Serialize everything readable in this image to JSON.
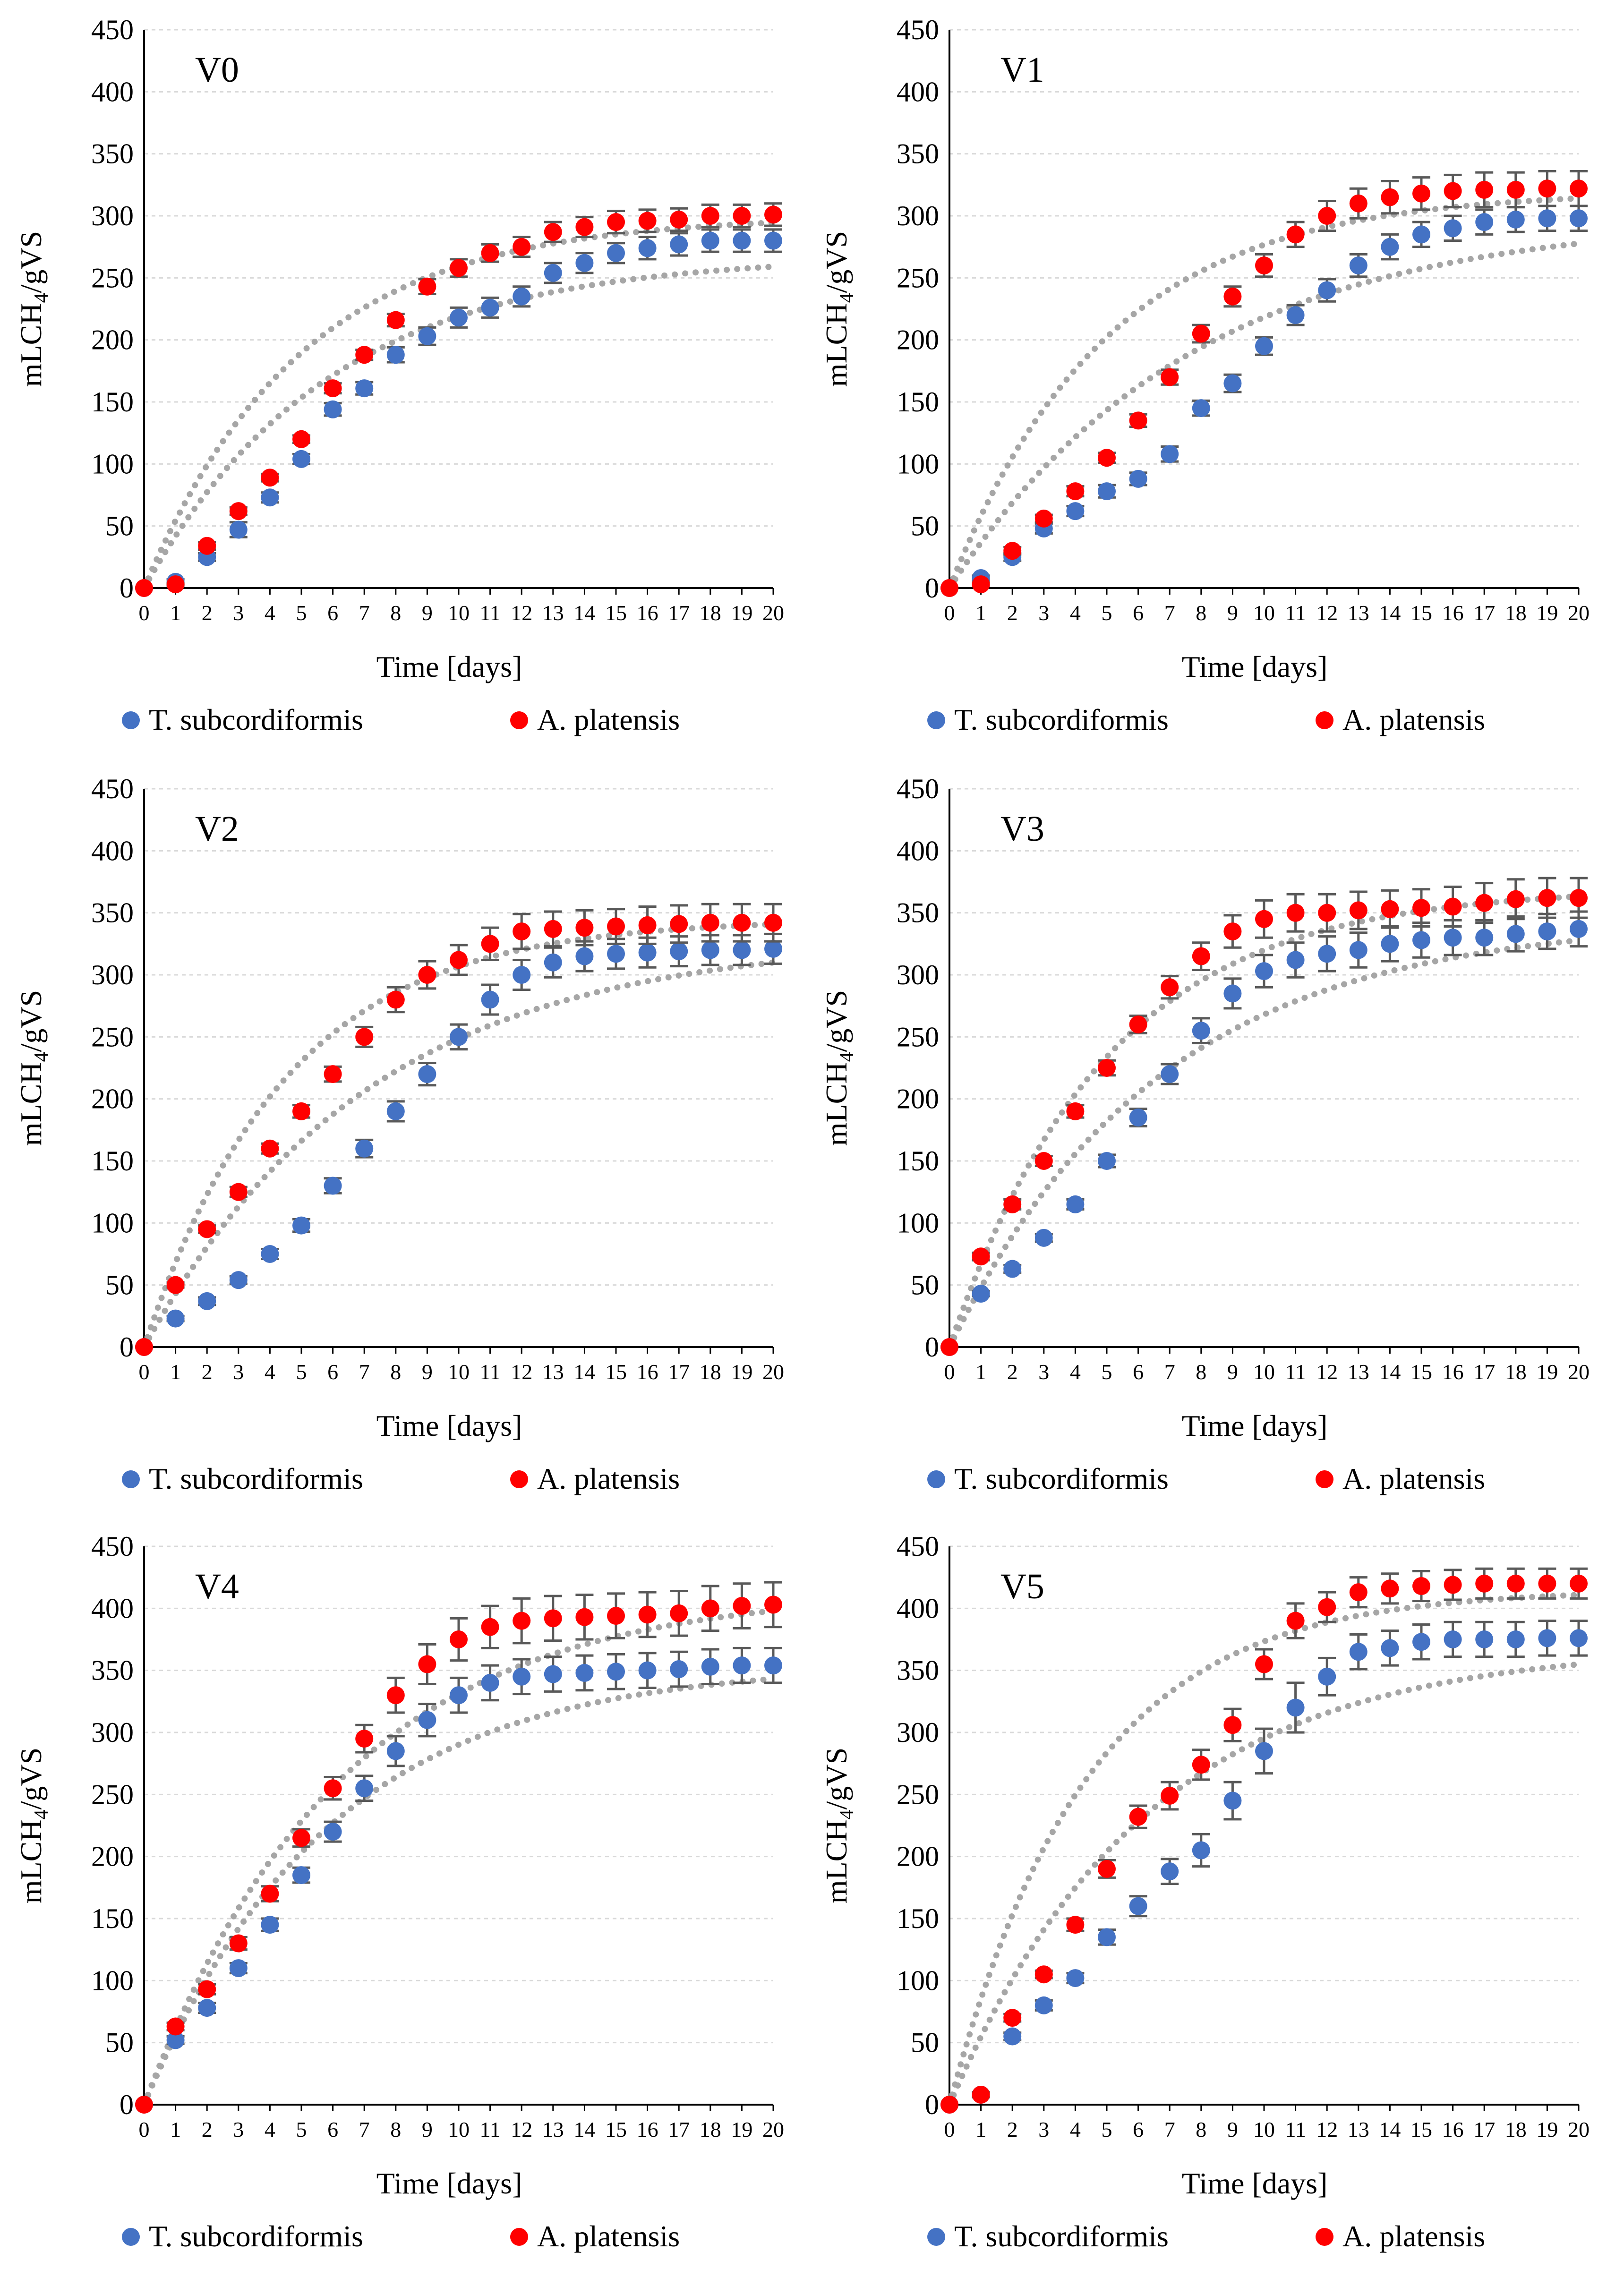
{
  "figure": {
    "y_axis_label": "mLCH",
    "y_axis_label_sub": "4",
    "y_axis_label_tail": "/gVS",
    "x_axis_label": "Time [days]",
    "colors": {
      "t_subcordiformis": "#4472c4",
      "a_platensis": "#ff0000",
      "trend": "#a6a6a6",
      "error_bar": "#595959",
      "grid": "#d9d9d9"
    }
  },
  "chart_data": [
    {
      "type": "scatter",
      "title": "V0",
      "xlabel": "Time [days]",
      "ylabel": "mLCH4/gVS",
      "xlim": [
        0,
        20
      ],
      "ylim": [
        0,
        450
      ],
      "x_ticks": [
        "0",
        "1",
        "2",
        "3",
        "4",
        "5",
        "6",
        "7",
        "8",
        "9",
        "10",
        "11",
        "12",
        "13",
        "14",
        "15",
        "16",
        "17",
        "18",
        "19",
        "20"
      ],
      "y_ticks": [
        "0",
        "50",
        "100",
        "150",
        "200",
        "250",
        "300",
        "350",
        "400",
        "450"
      ],
      "x": [
        0,
        1,
        2,
        3,
        4,
        5,
        6,
        7,
        8,
        9,
        10,
        11,
        12,
        13,
        14,
        15,
        16,
        17,
        18,
        19,
        20
      ],
      "series": [
        {
          "name": "T. subcordiformis",
          "color": "#4472c4",
          "values": [
            0,
            5,
            25,
            47,
            73,
            104,
            144,
            161,
            188,
            203,
            218,
            226,
            235,
            254,
            262,
            270,
            274,
            277,
            280,
            280,
            280
          ],
          "errors": [
            0,
            2,
            3,
            6,
            4,
            4,
            5,
            5,
            6,
            7,
            8,
            8,
            8,
            8,
            8,
            8,
            9,
            9,
            9,
            9,
            9
          ],
          "trend_plateau": 268,
          "trend_rate": 0.17
        },
        {
          "name": "A. platensis",
          "color": "#ff0000",
          "values": [
            0,
            3,
            34,
            62,
            89,
            120,
            161,
            188,
            216,
            243,
            258,
            270,
            275,
            287,
            291,
            295,
            296,
            297,
            300,
            300,
            301
          ],
          "errors": [
            0,
            1,
            3,
            3,
            3,
            3,
            4,
            4,
            5,
            6,
            7,
            7,
            8,
            8,
            8,
            9,
            9,
            9,
            9,
            9,
            9
          ],
          "trend_plateau": 300,
          "trend_rate": 0.2
        }
      ]
    },
    {
      "type": "scatter",
      "title": "V1",
      "xlabel": "Time [days]",
      "ylabel": "mLCH4/gVS",
      "xlim": [
        0,
        20
      ],
      "ylim": [
        0,
        450
      ],
      "x_ticks": [
        "0",
        "1",
        "2",
        "3",
        "4",
        "5",
        "6",
        "7",
        "8",
        "9",
        "10",
        "11",
        "12",
        "13",
        "14",
        "15",
        "16",
        "17",
        "18",
        "19",
        "20"
      ],
      "y_ticks": [
        "0",
        "50",
        "100",
        "150",
        "200",
        "250",
        "300",
        "350",
        "400",
        "450"
      ],
      "x": [
        0,
        1,
        2,
        3,
        4,
        5,
        6,
        7,
        8,
        9,
        10,
        11,
        12,
        13,
        14,
        15,
        16,
        17,
        18,
        19,
        20
      ],
      "series": [
        {
          "name": "T. subcordiformis",
          "color": "#4472c4",
          "values": [
            0,
            8,
            25,
            48,
            62,
            78,
            88,
            108,
            145,
            165,
            195,
            220,
            240,
            260,
            275,
            285,
            290,
            295,
            297,
            298,
            298
          ],
          "errors": [
            0,
            2,
            3,
            4,
            4,
            5,
            5,
            6,
            6,
            7,
            7,
            8,
            9,
            9,
            10,
            10,
            10,
            10,
            10,
            10,
            10
          ],
          "trend_plateau": 300,
          "trend_rate": 0.13
        },
        {
          "name": "A. platensis",
          "color": "#ff0000",
          "values": [
            0,
            3,
            30,
            56,
            78,
            105,
            135,
            170,
            205,
            235,
            260,
            285,
            300,
            310,
            315,
            318,
            320,
            321,
            321,
            322,
            322
          ],
          "errors": [
            0,
            1,
            3,
            3,
            4,
            4,
            5,
            6,
            7,
            8,
            9,
            10,
            12,
            12,
            13,
            13,
            13,
            14,
            14,
            14,
            14
          ],
          "trend_plateau": 320,
          "trend_rate": 0.2
        }
      ]
    },
    {
      "type": "scatter",
      "title": "V2",
      "xlabel": "Time [days]",
      "ylabel": "mLCH4/gVS",
      "xlim": [
        0,
        20
      ],
      "ylim": [
        0,
        450
      ],
      "x_ticks": [
        "0",
        "1",
        "2",
        "3",
        "4",
        "5",
        "6",
        "7",
        "8",
        "9",
        "10",
        "11",
        "12",
        "13",
        "14",
        "15",
        "16",
        "17",
        "18",
        "19",
        "20"
      ],
      "y_ticks": [
        "0",
        "50",
        "100",
        "150",
        "200",
        "250",
        "300",
        "350",
        "400",
        "450"
      ],
      "x": [
        0,
        1,
        2,
        3,
        4,
        5,
        6,
        7,
        8,
        9,
        10,
        11,
        12,
        13,
        14,
        15,
        16,
        17,
        18,
        19,
        20
      ],
      "series": [
        {
          "name": "T. subcordiformis",
          "color": "#4472c4",
          "values": [
            0,
            23,
            37,
            54,
            75,
            98,
            130,
            160,
            190,
            220,
            250,
            280,
            300,
            310,
            315,
            317,
            318,
            319,
            320,
            320,
            321
          ],
          "errors": [
            0,
            2,
            3,
            3,
            4,
            5,
            6,
            7,
            8,
            9,
            10,
            12,
            12,
            12,
            12,
            12,
            12,
            12,
            12,
            12,
            12
          ],
          "trend_plateau": 330,
          "trend_rate": 0.14
        },
        {
          "name": "A. platensis",
          "color": "#ff0000",
          "values": [
            0,
            50,
            95,
            125,
            160,
            190,
            220,
            250,
            280,
            300,
            312,
            325,
            335,
            337,
            338,
            339,
            340,
            341,
            342,
            342,
            342
          ],
          "errors": [
            0,
            2,
            3,
            4,
            4,
            5,
            6,
            8,
            10,
            11,
            12,
            13,
            14,
            14,
            14,
            14,
            15,
            15,
            15,
            15,
            15
          ],
          "trend_plateau": 345,
          "trend_rate": 0.22
        }
      ]
    },
    {
      "type": "scatter",
      "title": "V3",
      "xlabel": "Time [days]",
      "ylabel": "mLCH4/gVS",
      "xlim": [
        0,
        20
      ],
      "ylim": [
        0,
        450
      ],
      "x_ticks": [
        "0",
        "1",
        "2",
        "3",
        "4",
        "5",
        "6",
        "7",
        "8",
        "9",
        "10",
        "11",
        "12",
        "13",
        "14",
        "15",
        "16",
        "17",
        "18",
        "19",
        "20"
      ],
      "y_ticks": [
        "0",
        "50",
        "100",
        "150",
        "200",
        "250",
        "300",
        "350",
        "400",
        "450"
      ],
      "x": [
        0,
        1,
        2,
        3,
        4,
        5,
        6,
        7,
        8,
        9,
        10,
        11,
        12,
        13,
        14,
        15,
        16,
        17,
        18,
        19,
        20
      ],
      "series": [
        {
          "name": "T. subcordiformis",
          "color": "#4472c4",
          "values": [
            0,
            43,
            63,
            88,
            115,
            150,
            185,
            220,
            255,
            285,
            303,
            312,
            317,
            320,
            325,
            328,
            330,
            330,
            333,
            335,
            337
          ],
          "errors": [
            0,
            2,
            3,
            3,
            4,
            5,
            7,
            8,
            10,
            12,
            13,
            14,
            14,
            14,
            14,
            14,
            14,
            14,
            14,
            14,
            14
          ],
          "trend_plateau": 345,
          "trend_rate": 0.15
        },
        {
          "name": "A. platensis",
          "color": "#ff0000",
          "values": [
            0,
            73,
            115,
            150,
            190,
            225,
            260,
            290,
            315,
            335,
            345,
            350,
            350,
            352,
            353,
            354,
            355,
            358,
            361,
            362,
            362
          ],
          "errors": [
            0,
            3,
            4,
            4,
            5,
            6,
            7,
            9,
            11,
            13,
            15,
            15,
            15,
            15,
            15,
            15,
            16,
            16,
            16,
            16,
            16
          ],
          "trend_plateau": 370,
          "trend_rate": 0.2
        }
      ]
    },
    {
      "type": "scatter",
      "title": "V4",
      "xlabel": "Time [days]",
      "ylabel": "mLCH4/gVS",
      "xlim": [
        0,
        20
      ],
      "ylim": [
        0,
        450
      ],
      "x_ticks": [
        "0",
        "1",
        "2",
        "3",
        "4",
        "5",
        "6",
        "7",
        "8",
        "9",
        "10",
        "11",
        "12",
        "13",
        "14",
        "15",
        "16",
        "17",
        "18",
        "19",
        "20"
      ],
      "y_ticks": [
        "0",
        "50",
        "100",
        "150",
        "200",
        "250",
        "300",
        "350",
        "400",
        "450"
      ],
      "x": [
        0,
        1,
        2,
        3,
        4,
        5,
        6,
        7,
        8,
        9,
        10,
        11,
        12,
        13,
        14,
        15,
        16,
        17,
        18,
        19,
        20
      ],
      "series": [
        {
          "name": "T. subcordiformis",
          "color": "#4472c4",
          "values": [
            0,
            52,
            78,
            110,
            145,
            185,
            220,
            255,
            285,
            310,
            330,
            340,
            345,
            347,
            348,
            349,
            350,
            351,
            353,
            354,
            354
          ],
          "errors": [
            0,
            3,
            4,
            4,
            5,
            6,
            8,
            10,
            12,
            13,
            14,
            14,
            14,
            14,
            14,
            14,
            14,
            14,
            14,
            14,
            14
          ],
          "trend_plateau": 355,
          "trend_rate": 0.17
        },
        {
          "name": "A. platensis",
          "color": "#ff0000",
          "values": [
            0,
            63,
            93,
            130,
            170,
            215,
            255,
            295,
            330,
            355,
            375,
            385,
            390,
            392,
            393,
            394,
            395,
            396,
            400,
            402,
            403
          ],
          "errors": [
            0,
            3,
            4,
            5,
            6,
            7,
            9,
            11,
            14,
            16,
            17,
            17,
            18,
            18,
            18,
            18,
            18,
            18,
            18,
            18,
            18
          ],
          "trend_plateau": 415,
          "trend_rate": 0.16
        }
      ]
    },
    {
      "type": "scatter",
      "title": "V5",
      "xlabel": "Time [days]",
      "ylabel": "mLCH4/gVS",
      "xlim": [
        0,
        20
      ],
      "ylim": [
        0,
        450
      ],
      "x_ticks": [
        "0",
        "1",
        "2",
        "3",
        "4",
        "5",
        "6",
        "7",
        "8",
        "9",
        "10",
        "11",
        "12",
        "13",
        "14",
        "15",
        "16",
        "17",
        "18",
        "19",
        "20"
      ],
      "y_ticks": [
        "0",
        "50",
        "100",
        "150",
        "200",
        "250",
        "300",
        "350",
        "400",
        "450"
      ],
      "x": [
        0,
        1,
        2,
        3,
        4,
        5,
        6,
        7,
        8,
        9,
        10,
        11,
        12,
        13,
        14,
        15,
        16,
        17,
        18,
        19,
        20
      ],
      "series": [
        {
          "name": "T. subcordiformis",
          "color": "#4472c4",
          "values": [
            0,
            8,
            55,
            80,
            102,
            135,
            160,
            188,
            205,
            245,
            285,
            320,
            345,
            365,
            368,
            373,
            375,
            375,
            375,
            376,
            376
          ],
          "errors": [
            0,
            2,
            3,
            4,
            4,
            6,
            8,
            10,
            13,
            15,
            18,
            20,
            15,
            14,
            14,
            14,
            14,
            14,
            14,
            14,
            14
          ],
          "trend_plateau": 370,
          "trend_rate": 0.16
        },
        {
          "name": "A. platensis",
          "color": "#ff0000",
          "values": [
            0,
            8,
            70,
            105,
            145,
            190,
            232,
            249,
            274,
            306,
            355,
            390,
            401,
            413,
            416,
            418,
            419,
            420,
            420,
            420,
            420
          ],
          "errors": [
            0,
            2,
            3,
            3,
            5,
            7,
            9,
            11,
            12,
            13,
            12,
            14,
            12,
            12,
            12,
            12,
            12,
            12,
            12,
            12,
            12
          ],
          "trend_plateau": 415,
          "trend_rate": 0.23
        }
      ]
    }
  ]
}
